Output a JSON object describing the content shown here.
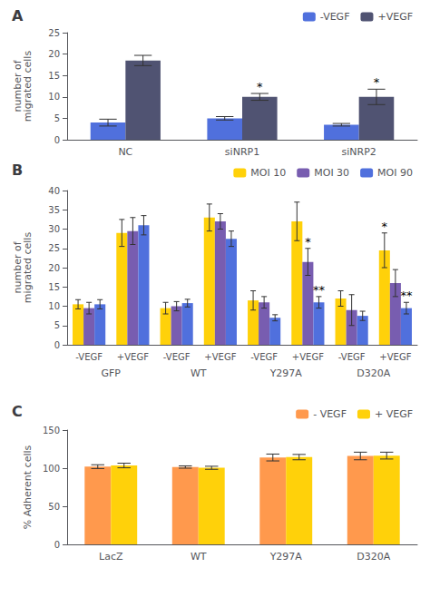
{
  "chart_data": [
    {
      "type": "bar",
      "title": "A",
      "categories": [
        "NC",
        "siNRP1",
        "siNRP2"
      ],
      "series": [
        {
          "name": "-VEGF",
          "values": [
            4.0,
            5.0,
            3.5
          ],
          "errors": [
            0.8,
            0.4,
            0.3
          ]
        },
        {
          "name": "+VEGF",
          "values": [
            18.5,
            10.0,
            10.0
          ],
          "errors": [
            1.2,
            0.8,
            1.8
          ]
        }
      ],
      "ylabel": "number of\nmigrated cells",
      "ylim": [
        0,
        25
      ],
      "yticks": [
        0,
        5,
        10,
        15,
        20,
        25
      ],
      "grid": false,
      "legend": "upper right",
      "annotations": [
        {
          "text": "*",
          "category": "siNRP1",
          "series": "+VEGF"
        },
        {
          "text": "*",
          "category": "siNRP2",
          "series": "+VEGF"
        }
      ]
    },
    {
      "type": "bar",
      "title": "B",
      "groups": [
        "GFP",
        "WT",
        "Y297A",
        "D320A"
      ],
      "categories": [
        "-VEGF",
        "+VEGF"
      ],
      "series": [
        {
          "name": "MOI 10",
          "values": [
            [
              10.5,
              29.0
            ],
            [
              9.5,
              33.0
            ],
            [
              11.5,
              32.0
            ],
            [
              12.0,
              24.5
            ]
          ],
          "errors": [
            [
              1.2,
              3.5
            ],
            [
              1.5,
              3.5
            ],
            [
              2.5,
              5.0
            ],
            [
              2.0,
              4.5
            ]
          ]
        },
        {
          "name": "MOI 30",
          "values": [
            [
              9.5,
              29.5
            ],
            [
              10.0,
              32.0
            ],
            [
              11.0,
              21.5
            ],
            [
              9.0,
              16.0
            ]
          ],
          "errors": [
            [
              1.5,
              3.5
            ],
            [
              1.2,
              2.0
            ],
            [
              1.5,
              3.5
            ],
            [
              4.0,
              3.5
            ]
          ]
        },
        {
          "name": "MOI 90",
          "values": [
            [
              10.5,
              31.0
            ],
            [
              10.8,
              27.5
            ],
            [
              7.0,
              11.0
            ],
            [
              7.5,
              9.5
            ]
          ],
          "errors": [
            [
              1.2,
              2.5
            ],
            [
              1.0,
              2.0
            ],
            [
              0.8,
              1.5
            ],
            [
              1.2,
              1.5
            ]
          ]
        }
      ],
      "ylabel": "number of\nmigrated cells",
      "ylim": [
        0,
        40
      ],
      "yticks": [
        0,
        5,
        10,
        15,
        20,
        25,
        30,
        35,
        40
      ],
      "grid": false,
      "legend": "upper right",
      "annotations": [
        {
          "text": "*",
          "group": "Y297A",
          "category": "+VEGF",
          "series": "MOI 30"
        },
        {
          "text": "**",
          "group": "Y297A",
          "category": "+VEGF",
          "series": "MOI 90"
        },
        {
          "text": "*",
          "group": "D320A",
          "category": "+VEGF",
          "series": "MOI 10"
        },
        {
          "text": "**",
          "group": "D320A",
          "category": "+VEGF",
          "series": "MOI 90"
        }
      ]
    },
    {
      "type": "bar",
      "title": "C",
      "categories": [
        "LacZ",
        "WT",
        "Y297A",
        "D320A"
      ],
      "series": [
        {
          "name": "- VEGF",
          "values": [
            102.0,
            101.5,
            114.0,
            116.0
          ],
          "errors": [
            2.5,
            1.5,
            4.5,
            5.0
          ]
        },
        {
          "name": "+ VEGF",
          "values": [
            103.5,
            100.5,
            114.5,
            116.5
          ],
          "errors": [
            3.0,
            2.0,
            3.5,
            4.5
          ]
        }
      ],
      "ylabel": "% Adherent cells",
      "ylim": [
        0,
        150
      ],
      "yticks": [
        0,
        50,
        100,
        150
      ],
      "grid": false,
      "legend": "upper right"
    }
  ]
}
